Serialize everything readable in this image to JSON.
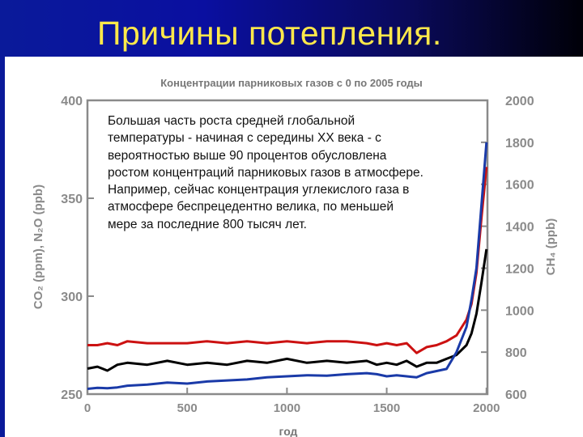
{
  "slide": {
    "title": "Причины потепления.",
    "text": "Большая часть роста средней глобальной температуры - начиная с середины XX века - с вероятностью выше 90 процентов обусловлена ростом концентраций парниковых газов в атмосфере. Например, сейчас концентрация углекислого газа в атмосфере беспрецедентно велика, по меньшей мере за последние 800 тысяч лет."
  },
  "colors": {
    "title_bg_start": "#0a1a9a",
    "title_bg_end": "#000008",
    "title_text": "#ffe84a",
    "co2": "#000000",
    "n2o": "#cc1111",
    "ch4": "#1a3aa8"
  },
  "chart_data": {
    "type": "line",
    "title": "Концентрации парниковых газов с 0 по 2005 годы",
    "xlabel": "год",
    "ylabel_left": "CO₂ (ppm), N₂O (ppb)",
    "ylabel_right": "CH₄ (ppb)",
    "xlim": [
      0,
      2005
    ],
    "ylim_left": [
      250,
      400
    ],
    "ylim_right": [
      600,
      2000
    ],
    "x_ticks": [
      "0",
      "500",
      "1000",
      "1500",
      "2000"
    ],
    "y_ticks_left": [
      "250",
      "300",
      "350",
      "400"
    ],
    "y_ticks_right": [
      "600",
      "800",
      "1000",
      "1200",
      "1400",
      "1600",
      "1800",
      "2000"
    ],
    "grid": false,
    "legend": "none",
    "series": [
      {
        "axis": "left",
        "color": "#cc1111",
        "x": [
          0,
          50,
          100,
          150,
          200,
          300,
          400,
          500,
          600,
          700,
          800,
          900,
          1000,
          1100,
          1200,
          1300,
          1400,
          1450,
          1500,
          1550,
          1600,
          1650,
          1700,
          1750,
          1800,
          1850,
          1900,
          1925,
          1950,
          1975,
          2000
        ],
        "values": [
          275,
          275,
          276,
          275,
          277,
          276,
          276,
          276,
          277,
          276,
          277,
          276,
          277,
          276,
          277,
          277,
          276,
          275,
          276,
          275,
          276,
          271,
          274,
          275,
          277,
          280,
          288,
          296,
          312,
          340,
          366
        ]
      },
      {
        "axis": "left",
        "color": "#000000",
        "x": [
          0,
          50,
          100,
          150,
          200,
          300,
          400,
          500,
          600,
          700,
          800,
          900,
          1000,
          1100,
          1200,
          1300,
          1400,
          1450,
          1500,
          1550,
          1600,
          1650,
          1700,
          1750,
          1800,
          1850,
          1900,
          1925,
          1950,
          1975,
          2000
        ],
        "values": [
          263,
          264,
          262,
          265,
          266,
          265,
          267,
          265,
          266,
          265,
          267,
          266,
          268,
          266,
          267,
          266,
          267,
          265,
          266,
          265,
          267,
          264,
          266,
          266,
          268,
          270,
          275,
          281,
          291,
          307,
          324
        ]
      },
      {
        "axis": "right",
        "color": "#1a3aa8",
        "x": [
          0,
          50,
          100,
          150,
          200,
          300,
          400,
          500,
          600,
          700,
          800,
          900,
          1000,
          1100,
          1200,
          1300,
          1400,
          1450,
          1500,
          1550,
          1600,
          1650,
          1700,
          1750,
          1800,
          1850,
          1900,
          1925,
          1950,
          1975,
          2000
        ],
        "values": [
          625,
          630,
          628,
          632,
          640,
          645,
          655,
          650,
          660,
          665,
          670,
          680,
          685,
          690,
          688,
          695,
          700,
          695,
          685,
          690,
          685,
          680,
          700,
          710,
          720,
          800,
          920,
          1050,
          1200,
          1500,
          1800
        ]
      }
    ]
  }
}
